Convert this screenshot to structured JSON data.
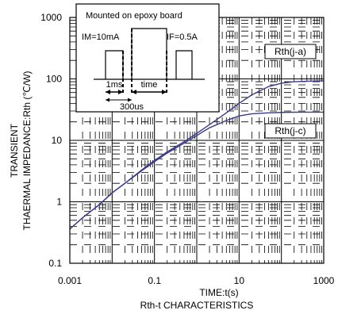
{
  "chart_data": {
    "type": "line",
    "xlabel": "TIME:t(s)",
    "ylabel_line1": "TRANSIENT",
    "ylabel_line2": "THAERMAL IMPEDANCE:Rth (℃/W)",
    "caption": "Rth-t CHARACTERISTICS",
    "xscale": "log",
    "yscale": "log",
    "xlim": [
      0.001,
      1000
    ],
    "ylim": [
      0.1,
      1000
    ],
    "x_ticks": [
      "0.001",
      "0.1",
      "10",
      "1000"
    ],
    "y_ticks": [
      "0.1",
      "1",
      "10",
      "100",
      "1000"
    ],
    "grid": true,
    "series": [
      {
        "name": "Rth(j-a)",
        "x": [
          0.001,
          0.002,
          0.005,
          0.01,
          0.02,
          0.05,
          0.1,
          0.2,
          0.5,
          1,
          2,
          5,
          10,
          20,
          50,
          100,
          200,
          500,
          1000
        ],
        "y": [
          0.36,
          0.55,
          0.9,
          1.4,
          2.0,
          3.3,
          4.7,
          6.5,
          9.5,
          13,
          18,
          28,
          40,
          55,
          75,
          85,
          90,
          92,
          93
        ]
      },
      {
        "name": "Rth(j-c)",
        "x": [
          0.001,
          0.002,
          0.005,
          0.01,
          0.02,
          0.05,
          0.1,
          0.2,
          0.5,
          1,
          2,
          5,
          10,
          20,
          50,
          100,
          200,
          500,
          1000
        ],
        "y": [
          0.36,
          0.55,
          0.9,
          1.4,
          2.0,
          3.2,
          4.5,
          6.2,
          9.0,
          12,
          16,
          21,
          25,
          27,
          28,
          28.5,
          28.7,
          28.8,
          28.8
        ]
      }
    ],
    "annotations": {
      "inset_title": "Mounted on epoxy board",
      "im": "IM=10mA",
      "if": "IF=0.5A",
      "t1": "1ms",
      "t2": "time",
      "t3": "300us",
      "label_ja": "Rth(j-a)",
      "label_jc": "Rth(j-c)"
    },
    "colors": {
      "curve": "#3a3a8c",
      "axis": "#000000"
    }
  }
}
